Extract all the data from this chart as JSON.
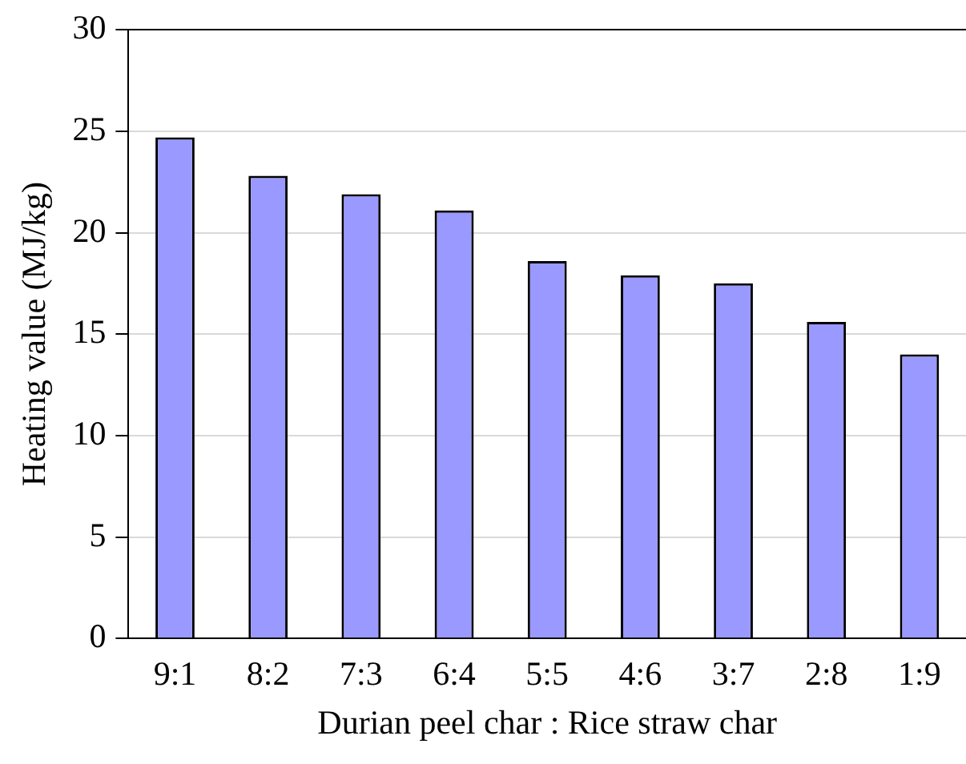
{
  "chart_data": {
    "type": "bar",
    "xlabel": "Durian peel char : Rice straw char",
    "ylabel": "Heating value (MJ/kg)",
    "categories": [
      "9:1",
      "8:2",
      "7:3",
      "6:4",
      "5:5",
      "4:6",
      "3:7",
      "2:8",
      "1:9"
    ],
    "values": [
      24.7,
      22.8,
      21.9,
      21.1,
      18.6,
      17.9,
      17.5,
      15.6,
      14.0
    ],
    "color": "#9999ff",
    "ylim": [
      0,
      30
    ],
    "yticks": [
      0,
      5,
      10,
      15,
      20,
      25,
      30
    ],
    "grid": "y",
    "legend": false
  }
}
